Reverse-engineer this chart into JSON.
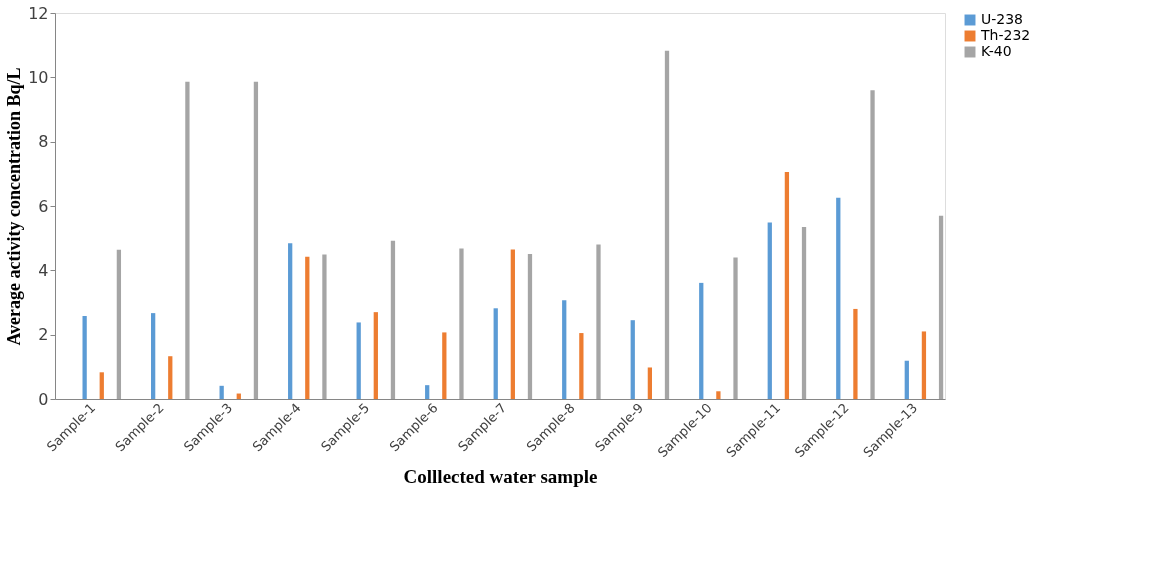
{
  "chart_data": {
    "type": "bar",
    "xlabel": "Colllected water sample",
    "ylabel": "Average activity concentration  Bq/L",
    "categories": [
      "Sample-1",
      "Sample-2",
      "Sample-3",
      "Sample-4",
      "Sample-5",
      "Sample-6",
      "Sample-7",
      "Sample-8",
      "Sample-9",
      "Sample-10",
      "Sample-11",
      "Sample-12",
      "Sample-13"
    ],
    "series": [
      {
        "name": "U-238",
        "color": "#5b9bd5",
        "values": [
          2.58,
          2.67,
          0.41,
          4.84,
          2.38,
          0.43,
          2.82,
          3.07,
          2.45,
          3.61,
          5.49,
          6.26,
          1.19
        ]
      },
      {
        "name": "Th-232",
        "color": "#ed7d31",
        "values": [
          0.83,
          1.33,
          0.17,
          4.42,
          2.7,
          2.07,
          4.65,
          2.05,
          0.98,
          0.24,
          7.06,
          2.8,
          2.1
        ]
      },
      {
        "name": "K-40",
        "color": "#a5a5a5",
        "values": [
          4.64,
          9.86,
          9.86,
          4.49,
          4.92,
          4.68,
          4.51,
          4.8,
          10.83,
          4.4,
          5.35,
          9.6,
          5.7
        ]
      }
    ],
    "ylim": [
      0,
      12
    ],
    "yticks": [
      0,
      2,
      4,
      6,
      8,
      10,
      12
    ],
    "grid": false,
    "legend": "right"
  }
}
